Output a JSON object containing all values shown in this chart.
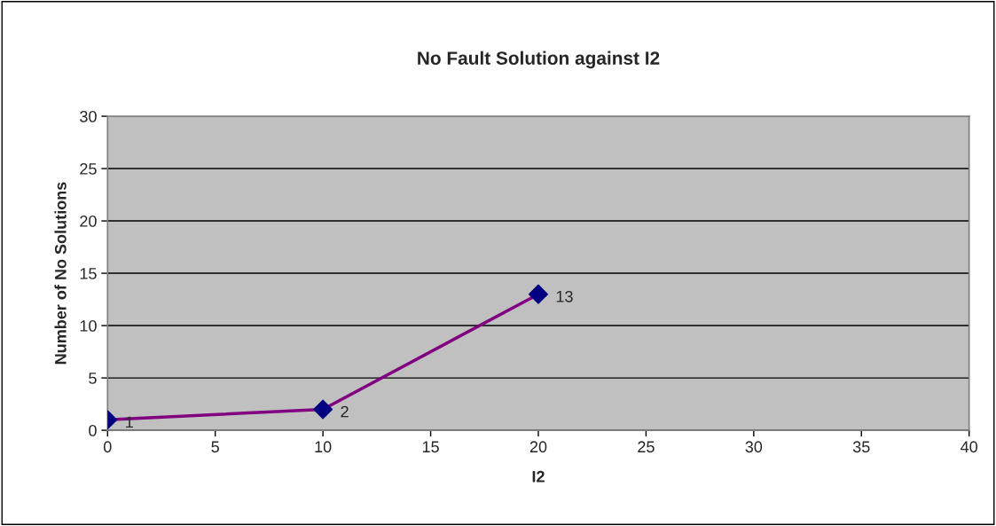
{
  "chart_data": {
    "type": "line",
    "title": "No Fault Solution against I2",
    "xlabel": "I2",
    "ylabel": "Number of No Solutions",
    "x": [
      0,
      10,
      20
    ],
    "series": [
      {
        "color": "#800080",
        "colors": [
          "#000080",
          "#000080",
          "#000080"
        ],
        "values": [
          1,
          2,
          13
        ]
      }
    ],
    "xlim": [
      0,
      40
    ],
    "xticks": [
      0,
      5,
      10,
      15,
      20,
      25,
      30,
      35,
      40
    ],
    "ylim": [
      0,
      30
    ],
    "yticks": [
      0,
      5,
      10,
      15,
      20,
      25,
      30
    ],
    "grid": "y",
    "marker": "diamond",
    "line_style": "solid",
    "data_labels": true
  }
}
